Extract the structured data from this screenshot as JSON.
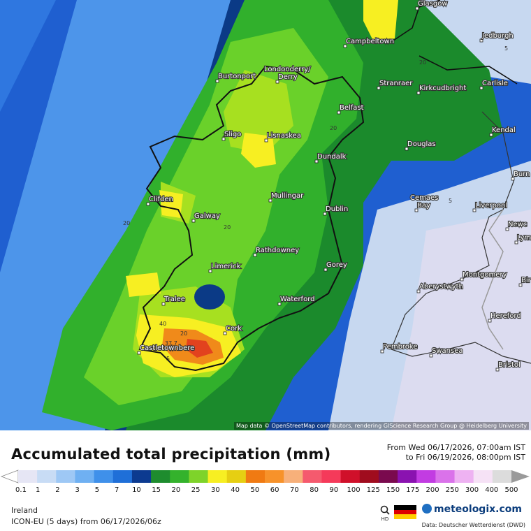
{
  "map": {
    "colors": {
      "sea_deep": "#1f5fd0",
      "sea_mid": "#2f77e0",
      "sea_light": "#4d95ea",
      "navy": "#0b3a86",
      "dark_green": "#1b8a2c",
      "green": "#31b02c",
      "light_green": "#6ad12a",
      "lime": "#a7e020",
      "yellow": "#f7ef22",
      "orange": "#f08a1a",
      "red_orange": "#e2421e",
      "pale_blue": "#c7d8f0",
      "lavender": "#dcdcf0"
    },
    "cities": [
      {
        "name": "Glasgow"
      },
      {
        "name": "Campbeltown"
      },
      {
        "name": "Jedburgh"
      },
      {
        "name": "Londonderry/"
      },
      {
        "name": "Derry"
      },
      {
        "name": "Burtonport"
      },
      {
        "name": "Stranraer"
      },
      {
        "name": "Kirkcudbright"
      },
      {
        "name": "Carlisle"
      },
      {
        "name": "Belfast"
      },
      {
        "name": "Lisnaskea"
      },
      {
        "name": "Sligo"
      },
      {
        "name": "Kendal"
      },
      {
        "name": "Douglas"
      },
      {
        "name": "Dundalk"
      },
      {
        "name": "Burn"
      },
      {
        "name": "Mullingar"
      },
      {
        "name": "Clifden"
      },
      {
        "name": "Cemaes"
      },
      {
        "name": "Bay"
      },
      {
        "name": "Liverpool"
      },
      {
        "name": "Dublin"
      },
      {
        "name": "Galway"
      },
      {
        "name": "Newc"
      },
      {
        "name": "Lym"
      },
      {
        "name": "Rathdowney"
      },
      {
        "name": "Limerick"
      },
      {
        "name": "Gorey"
      },
      {
        "name": "Montgomery"
      },
      {
        "name": "Bir"
      },
      {
        "name": "Aberystwyth"
      },
      {
        "name": "Tralee"
      },
      {
        "name": "Waterford"
      },
      {
        "name": "Hereford"
      },
      {
        "name": "Cork"
      },
      {
        "name": "Castletownbere"
      },
      {
        "name": "Pembroke"
      },
      {
        "name": "Swansea"
      },
      {
        "name": "Bristol"
      }
    ],
    "contour_labels": [
      "5",
      "20",
      "20",
      "20",
      "20",
      "20",
      "5",
      "40",
      "20",
      "5",
      "37.7"
    ],
    "attribution": "Map data © OpenStreetMap contributors, rendering GIScience Research Group @ Heidelberg University"
  },
  "legend": {
    "title": "Accumulated total precipitation (mm)",
    "period_from": "From Wed 06/17/2026, 07:00am IST",
    "period_to": "to Fri 06/19/2026, 08:00pm IST",
    "ticks": [
      "0.1",
      "1",
      "2",
      "3",
      "5",
      "7",
      "10",
      "15",
      "20",
      "25",
      "30",
      "40",
      "50",
      "60",
      "70",
      "80",
      "90",
      "100",
      "125",
      "150",
      "175",
      "200",
      "250",
      "300",
      "400",
      "500"
    ],
    "colors": [
      "#e6e6f5",
      "#c8dcf5",
      "#9ec8f5",
      "#6fb0f2",
      "#3f90ea",
      "#1f6fd8",
      "#0c3a90",
      "#1e8c2e",
      "#34b22c",
      "#7ed32a",
      "#f7ef22",
      "#e6cf12",
      "#f07a12",
      "#f7922a",
      "#f7b07a",
      "#f55a6e",
      "#f53a5a",
      "#d0102a",
      "#a00c1e",
      "#7a0a4e",
      "#8a12b0",
      "#c23ce2",
      "#da72ea",
      "#eeb2f2",
      "#f6e2f6",
      "#dcdcdc"
    ]
  },
  "footer": {
    "region": "Ireland",
    "model": "ICON-EU (5 days) from 06/17/2026/06z",
    "zoom_label": "HD",
    "brand": "meteologix.com",
    "source": "Data: Deutscher Wetterdienst (DWD)"
  }
}
